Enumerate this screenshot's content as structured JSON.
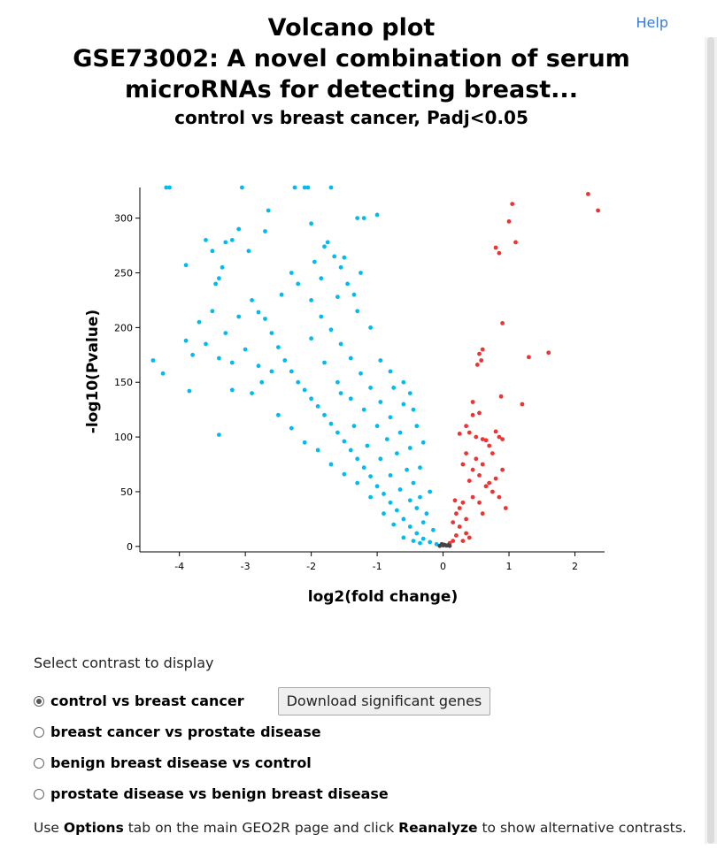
{
  "header": {
    "help_label": "Help",
    "title_line1": "Volcano plot",
    "title_line2": "GSE73002: A novel combination of serum",
    "title_line3": "microRNAs for detecting breast...",
    "subtitle": "control vs breast cancer, Padj<0.05"
  },
  "colors": {
    "down": "#00bbf0",
    "up": "#ee3333",
    "not_significant": "#444444"
  },
  "chart_data": {
    "type": "scatter",
    "xlabel": "log2(fold change)",
    "ylabel": "-log10(Pvalue)",
    "xlim": [
      -4.6,
      2.45
    ],
    "ylim": [
      -5,
      328
    ],
    "xticks": [
      -4,
      -3,
      -2,
      -1,
      0,
      1,
      2
    ],
    "yticks": [
      0,
      50,
      100,
      150,
      200,
      250,
      300
    ],
    "series": [
      {
        "group": "down",
        "points": [
          [
            -4.4,
            170
          ],
          [
            -4.25,
            158
          ],
          [
            -4.15,
            330
          ],
          [
            -4.2,
            330
          ],
          [
            -3.9,
            257
          ],
          [
            -3.9,
            188
          ],
          [
            -3.85,
            142
          ],
          [
            -3.6,
            280
          ],
          [
            -3.5,
            270
          ],
          [
            -3.45,
            240
          ],
          [
            -3.4,
            245
          ],
          [
            -3.35,
            255
          ],
          [
            -3.3,
            278
          ],
          [
            -3.2,
            280
          ],
          [
            -3.05,
            330
          ],
          [
            -3.1,
            290
          ],
          [
            -2.95,
            270
          ],
          [
            -2.7,
            288
          ],
          [
            -2.65,
            307
          ],
          [
            -3.4,
            102
          ],
          [
            -3.2,
            143
          ],
          [
            -2.25,
            330
          ],
          [
            -2.1,
            330
          ],
          [
            -2.05,
            330
          ],
          [
            -1.7,
            330
          ],
          [
            -2.0,
            295
          ],
          [
            -1.95,
            260
          ],
          [
            -1.8,
            274
          ],
          [
            -1.75,
            278
          ],
          [
            -1.65,
            265
          ],
          [
            -1.55,
            255
          ],
          [
            -1.5,
            264
          ],
          [
            -1.3,
            300
          ],
          [
            -1.2,
            300
          ],
          [
            -1.0,
            303
          ],
          [
            -2.9,
            225
          ],
          [
            -2.8,
            214
          ],
          [
            -2.7,
            208
          ],
          [
            -2.6,
            195
          ],
          [
            -2.5,
            182
          ],
          [
            -2.4,
            170
          ],
          [
            -2.3,
            160
          ],
          [
            -2.2,
            150
          ],
          [
            -2.1,
            143
          ],
          [
            -2.0,
            135
          ],
          [
            -1.9,
            128
          ],
          [
            -1.8,
            120
          ],
          [
            -1.7,
            112
          ],
          [
            -1.6,
            104
          ],
          [
            -1.5,
            96
          ],
          [
            -1.4,
            88
          ],
          [
            -1.3,
            80
          ],
          [
            -1.2,
            72
          ],
          [
            -1.1,
            64
          ],
          [
            -1.0,
            55
          ],
          [
            -0.9,
            48
          ],
          [
            -0.8,
            40
          ],
          [
            -0.7,
            33
          ],
          [
            -0.6,
            25
          ],
          [
            -0.5,
            18
          ],
          [
            -0.4,
            12
          ],
          [
            -0.3,
            7
          ],
          [
            -0.2,
            4
          ],
          [
            -0.1,
            2
          ],
          [
            -2.2,
            240
          ],
          [
            -2.0,
            225
          ],
          [
            -1.85,
            210
          ],
          [
            -1.7,
            198
          ],
          [
            -1.55,
            185
          ],
          [
            -1.4,
            172
          ],
          [
            -1.25,
            158
          ],
          [
            -1.1,
            145
          ],
          [
            -0.95,
            132
          ],
          [
            -0.8,
            118
          ],
          [
            -0.65,
            104
          ],
          [
            -0.5,
            90
          ],
          [
            -0.35,
            72
          ],
          [
            -0.2,
            50
          ],
          [
            -2.5,
            120
          ],
          [
            -2.3,
            108
          ],
          [
            -2.1,
            95
          ],
          [
            -1.9,
            88
          ],
          [
            -1.7,
            75
          ],
          [
            -1.5,
            66
          ],
          [
            -1.3,
            58
          ],
          [
            -1.1,
            45
          ],
          [
            -0.9,
            30
          ],
          [
            -0.75,
            20
          ],
          [
            -2.0,
            190
          ],
          [
            -1.8,
            168
          ],
          [
            -1.6,
            150
          ],
          [
            -1.4,
            135
          ],
          [
            -1.2,
            125
          ],
          [
            -1.0,
            110
          ],
          [
            -0.85,
            98
          ],
          [
            -0.7,
            85
          ],
          [
            -0.55,
            70
          ],
          [
            -0.45,
            58
          ],
          [
            -0.35,
            45
          ],
          [
            -0.25,
            30
          ],
          [
            -0.15,
            15
          ],
          [
            -3.1,
            210
          ],
          [
            -3.3,
            195
          ],
          [
            -3.6,
            185
          ],
          [
            -3.7,
            205
          ],
          [
            -3.4,
            172
          ],
          [
            -3.2,
            168
          ],
          [
            -3.0,
            180
          ],
          [
            -2.8,
            165
          ],
          [
            -3.8,
            175
          ],
          [
            -3.5,
            215
          ],
          [
            -1.3,
            215
          ],
          [
            -1.1,
            200
          ],
          [
            -0.95,
            170
          ],
          [
            -0.8,
            160
          ],
          [
            -0.6,
            150
          ],
          [
            -0.5,
            140
          ],
          [
            -0.45,
            125
          ],
          [
            -0.4,
            110
          ],
          [
            -0.3,
            95
          ],
          [
            -0.6,
            130
          ],
          [
            -0.75,
            145
          ],
          [
            -1.6,
            228
          ],
          [
            -1.45,
            240
          ],
          [
            -1.35,
            230
          ],
          [
            -1.25,
            250
          ],
          [
            -1.85,
            245
          ],
          [
            -2.3,
            250
          ],
          [
            -2.45,
            230
          ],
          [
            -2.6,
            160
          ],
          [
            -2.75,
            150
          ],
          [
            -2.9,
            140
          ],
          [
            -1.55,
            140
          ],
          [
            -1.35,
            110
          ],
          [
            -1.15,
            92
          ],
          [
            -0.95,
            80
          ],
          [
            -0.8,
            65
          ],
          [
            -0.65,
            52
          ],
          [
            -0.5,
            42
          ],
          [
            -0.4,
            35
          ],
          [
            -0.3,
            22
          ],
          [
            -0.6,
            8
          ],
          [
            -0.45,
            5
          ],
          [
            -0.35,
            3
          ]
        ]
      },
      {
        "group": "up",
        "points": [
          [
            2.2,
            322
          ],
          [
            2.35,
            307
          ],
          [
            1.0,
            297
          ],
          [
            1.05,
            313
          ],
          [
            1.1,
            278
          ],
          [
            0.8,
            273
          ],
          [
            0.85,
            268
          ],
          [
            0.9,
            204
          ],
          [
            1.3,
            173
          ],
          [
            1.6,
            177
          ],
          [
            1.2,
            130
          ],
          [
            0.6,
            180
          ],
          [
            0.55,
            176
          ],
          [
            0.58,
            170
          ],
          [
            0.52,
            166
          ],
          [
            0.88,
            137
          ],
          [
            0.45,
            132
          ],
          [
            0.45,
            120
          ],
          [
            0.55,
            122
          ],
          [
            0.35,
            110
          ],
          [
            0.25,
            103
          ],
          [
            0.4,
            104
          ],
          [
            0.5,
            100
          ],
          [
            0.6,
            98
          ],
          [
            0.65,
            97
          ],
          [
            0.8,
            105
          ],
          [
            0.85,
            100
          ],
          [
            0.9,
            98
          ],
          [
            0.7,
            92
          ],
          [
            0.75,
            85
          ],
          [
            0.6,
            75
          ],
          [
            0.5,
            80
          ],
          [
            0.45,
            70
          ],
          [
            0.55,
            65
          ],
          [
            0.65,
            55
          ],
          [
            0.75,
            50
          ],
          [
            0.85,
            45
          ],
          [
            0.95,
            35
          ],
          [
            0.35,
            85
          ],
          [
            0.3,
            75
          ],
          [
            0.4,
            60
          ],
          [
            0.3,
            40
          ],
          [
            0.2,
            30
          ],
          [
            0.15,
            22
          ],
          [
            0.25,
            18
          ],
          [
            0.35,
            12
          ],
          [
            0.4,
            8
          ],
          [
            0.2,
            10
          ],
          [
            0.15,
            5
          ],
          [
            0.1,
            3
          ],
          [
            0.3,
            5
          ],
          [
            0.45,
            45
          ],
          [
            0.55,
            40
          ],
          [
            0.6,
            30
          ],
          [
            0.7,
            58
          ],
          [
            0.8,
            62
          ],
          [
            0.9,
            70
          ],
          [
            0.35,
            25
          ],
          [
            0.25,
            35
          ],
          [
            0.18,
            42
          ]
        ]
      },
      {
        "group": "not_significant",
        "points": [
          [
            0.0,
            1
          ],
          [
            -0.05,
            0.5
          ],
          [
            0.05,
            0.8
          ],
          [
            0.02,
            1.5
          ],
          [
            -0.02,
            2
          ],
          [
            0.08,
            1
          ],
          [
            0.1,
            0.5
          ]
        ]
      }
    ]
  },
  "controls": {
    "select_label": "Select contrast to display",
    "options": [
      {
        "label": "control vs breast cancer",
        "checked": true
      },
      {
        "label": "breast cancer vs prostate disease",
        "checked": false
      },
      {
        "label": "benign breast disease vs control",
        "checked": false
      },
      {
        "label": "prostate disease vs benign breast disease",
        "checked": false
      }
    ],
    "download_label": "Download significant genes",
    "note_prefix": "Use ",
    "note_options": "Options",
    "note_middle": " tab on the main GEO2R page and click ",
    "note_reanalyze": "Reanalyze",
    "note_suffix": " to show alternative contrasts."
  }
}
